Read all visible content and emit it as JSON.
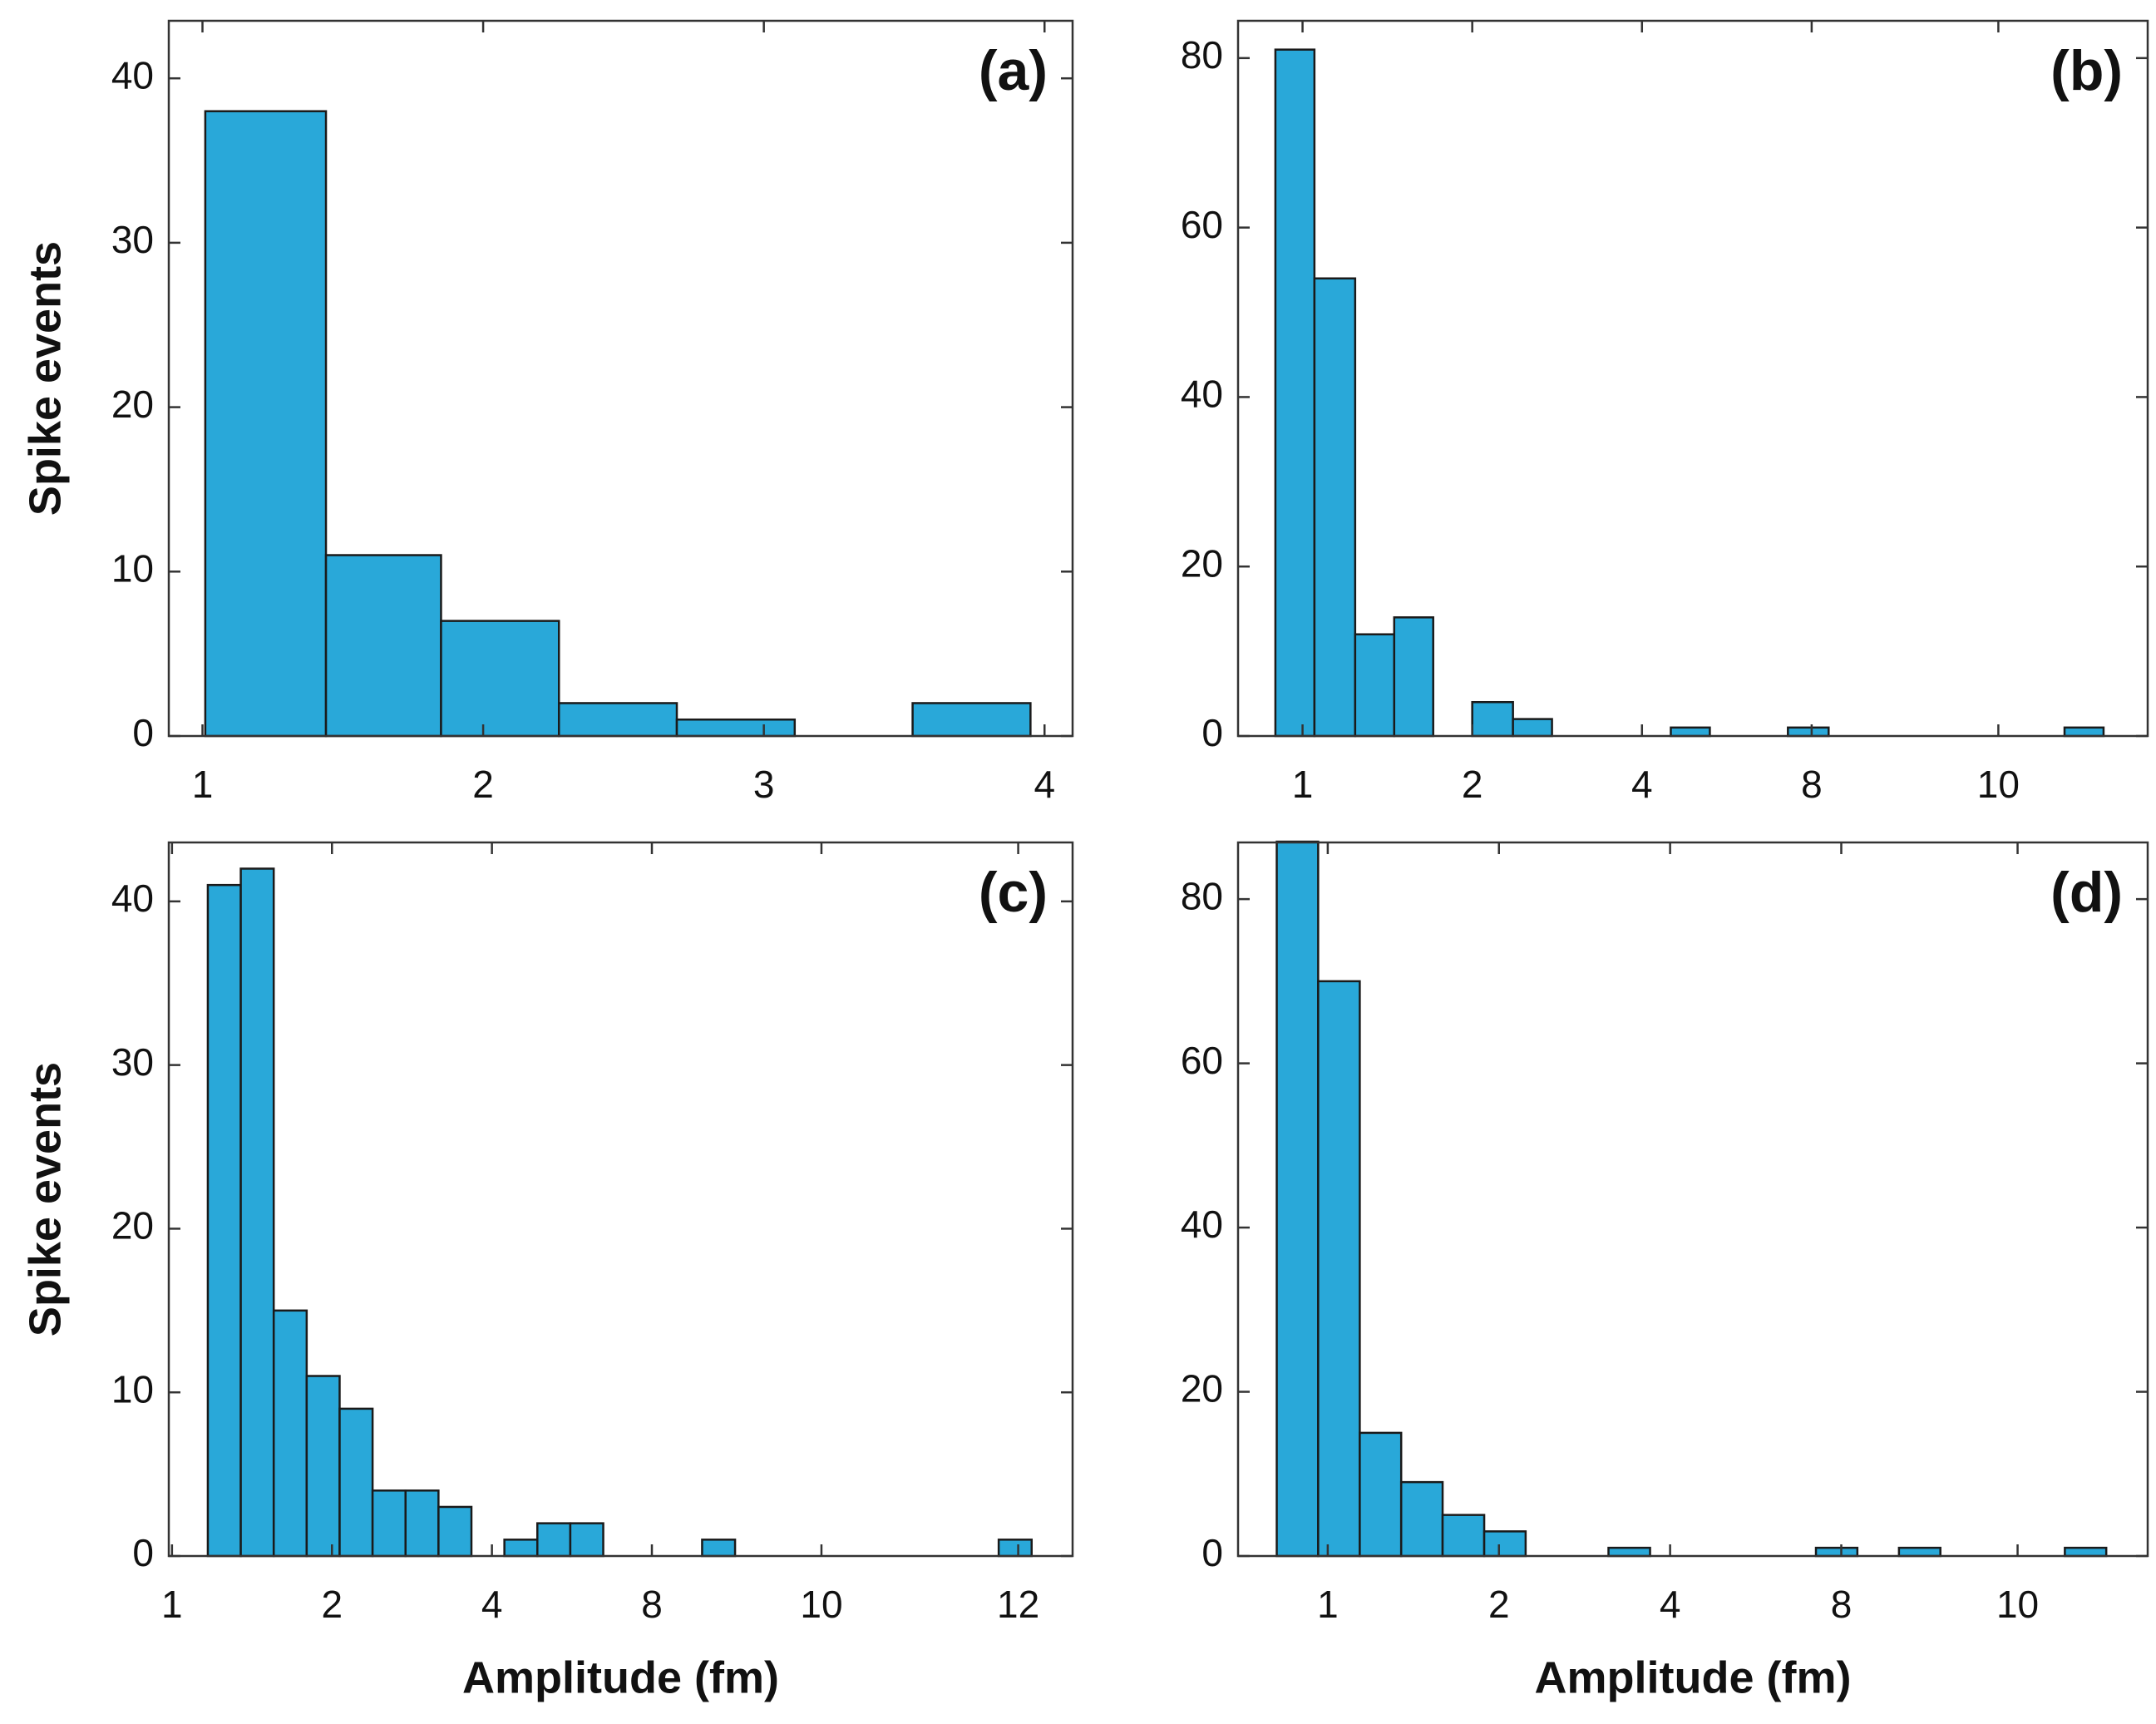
{
  "chart_data": [
    {
      "type": "histogram",
      "annotation": "(a)",
      "y_label": "Spike events",
      "bins": [
        1.01,
        1.44,
        1.85,
        2.27,
        2.69,
        3.11,
        3.53,
        3.95
      ],
      "values": [
        38,
        11,
        7,
        2,
        1,
        0,
        2
      ],
      "color": "#29a8d9",
      "xlim": [
        0.88,
        4.1
      ],
      "xticks": [
        1,
        2,
        3,
        4
      ],
      "ylim": [
        0,
        43.5
      ],
      "yticks": [
        0,
        10,
        20,
        30,
        40
      ]
    },
    {
      "type": "histogram",
      "annotation": "(b)",
      "bins": [
        0.84,
        1.07,
        1.31,
        1.54,
        1.77,
        2.0,
        2.24,
        2.47,
        2.7,
        2.93,
        3.17,
        3.4,
        3.63,
        3.86,
        4.1,
        4.33,
        4.56,
        4.79,
        5.03,
        5.26,
        5.49,
        5.72
      ],
      "values": [
        81,
        54,
        12,
        14,
        0,
        4,
        2,
        0,
        0,
        0,
        1,
        0,
        0,
        1,
        0,
        0,
        0,
        0,
        0,
        0,
        1
      ],
      "color": "#29a8d9",
      "xlim": [
        0.62,
        5.98
      ],
      "xticks": [
        1,
        2,
        {
          "value": 3,
          "label": "4"
        },
        {
          "value": 4,
          "label": "8"
        },
        {
          "value": 5.1,
          "label": "10"
        }
      ],
      "ylim": [
        0,
        84.4
      ],
      "yticks": [
        0,
        20,
        40,
        60,
        80
      ]
    },
    {
      "type": "histogram",
      "annotation": "(c)",
      "y_label": "Spike events",
      "x_label": "Amplitude (fm)",
      "bins": [
        1.224,
        1.43,
        1.636,
        1.842,
        2.048,
        2.254,
        2.46,
        2.666,
        2.872,
        3.078,
        3.284,
        3.49,
        3.696,
        3.902,
        4.108,
        4.314,
        4.52,
        4.726,
        4.932,
        5.138,
        5.344,
        5.55,
        5.756,
        5.962,
        6.168,
        6.374
      ],
      "values": [
        41,
        42,
        15,
        11,
        9,
        4,
        4,
        3,
        0,
        1,
        2,
        2,
        0,
        0,
        0,
        1,
        0,
        0,
        0,
        0,
        0,
        0,
        0,
        0,
        1
      ],
      "color": "#29a8d9",
      "xlim": [
        0.98,
        6.63
      ],
      "xticks": [
        1,
        2,
        {
          "value": 3,
          "label": "4"
        },
        {
          "value": 4,
          "label": "8"
        },
        {
          "value": 5.06,
          "label": "10"
        },
        {
          "value": 6.29,
          "label": "12"
        }
      ],
      "ylim": [
        0,
        43.6
      ],
      "yticks": [
        0,
        10,
        20,
        30,
        40
      ]
    },
    {
      "type": "histogram",
      "annotation": "(d)",
      "x_label": "Amplitude (fm)",
      "bins": [
        0.702,
        0.944,
        1.187,
        1.429,
        1.671,
        1.914,
        2.156,
        2.398,
        2.64,
        2.883,
        3.125,
        3.367,
        3.61,
        3.852,
        4.094,
        4.337,
        4.579,
        4.821,
        5.063,
        5.306,
        5.548
      ],
      "values": [
        87,
        70,
        15,
        9,
        5,
        3,
        0,
        0,
        1,
        0,
        0,
        0,
        0,
        1,
        0,
        1,
        0,
        0,
        0,
        1
      ],
      "color": "#29a8d9",
      "xlim": [
        0.476,
        5.79
      ],
      "xticks": [
        1,
        2,
        {
          "value": 3,
          "label": "4"
        },
        {
          "value": 4,
          "label": "8"
        },
        {
          "value": 5.03,
          "label": "10"
        }
      ],
      "ylim": [
        0,
        86.9
      ],
      "yticks": [
        0,
        20,
        40,
        60,
        80
      ]
    }
  ]
}
